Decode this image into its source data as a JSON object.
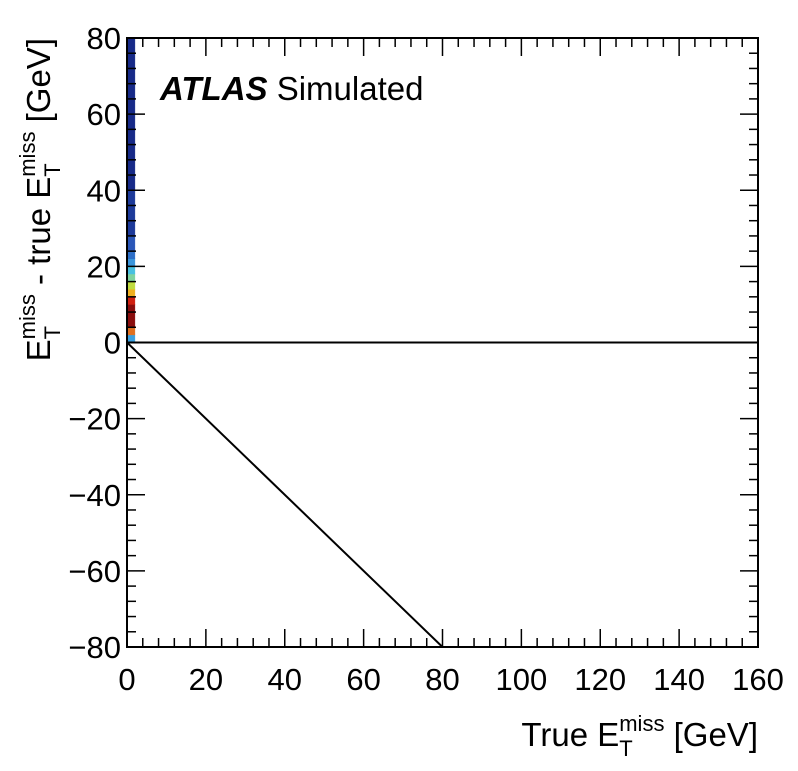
{
  "chart_data": {
    "type": "heatmap2d",
    "annotation": [
      {
        "text": "ATLAS",
        "style": "bold-italic"
      },
      {
        "text": " Simulated",
        "style": "normal"
      }
    ],
    "xlabel": [
      {
        "text": "True E"
      },
      {
        "text": "T",
        "script": "sub"
      },
      {
        "text": "miss",
        "script": "sup"
      },
      {
        "text": " [GeV]"
      }
    ],
    "ylabel": [
      {
        "text": "E"
      },
      {
        "text": "T",
        "script": "sub"
      },
      {
        "text": "miss",
        "script": "sup"
      },
      {
        "text": " - true E"
      },
      {
        "text": "T",
        "script": "sub"
      },
      {
        "text": "miss",
        "script": "sup"
      },
      {
        "text": " [GeV]"
      }
    ],
    "xlim": [
      0,
      160
    ],
    "ylim": [
      -80,
      80
    ],
    "xticks": [
      0,
      20,
      40,
      60,
      80,
      100,
      120,
      140,
      160
    ],
    "yticks": [
      {
        "value": -80,
        "label": "−80"
      },
      {
        "value": -60,
        "label": "−60"
      },
      {
        "value": -40,
        "label": "−40"
      },
      {
        "value": -20,
        "label": "−20"
      },
      0,
      20,
      40,
      60,
      80
    ],
    "minor_divisions": 5,
    "cells": [
      {
        "x": [
          0,
          2
        ],
        "y": [
          0,
          2
        ],
        "color": "#3aa0e0"
      },
      {
        "x": [
          0,
          2
        ],
        "y": [
          2,
          4
        ],
        "color": "#e07020"
      },
      {
        "x": [
          0,
          2
        ],
        "y": [
          4,
          10
        ],
        "color": "#8a0d0d"
      },
      {
        "x": [
          0,
          2
        ],
        "y": [
          10,
          12
        ],
        "color": "#d02010"
      },
      {
        "x": [
          0,
          2
        ],
        "y": [
          12,
          14
        ],
        "color": "#f0b020"
      },
      {
        "x": [
          0,
          2
        ],
        "y": [
          14,
          16
        ],
        "color": "#c0dc40"
      },
      {
        "x": [
          0,
          2
        ],
        "y": [
          16,
          18
        ],
        "color": "#7fd3a0"
      },
      {
        "x": [
          0,
          2
        ],
        "y": [
          18,
          20
        ],
        "color": "#48c0e0"
      },
      {
        "x": [
          0,
          2
        ],
        "y": [
          20,
          22
        ],
        "color": "#3a96dc"
      },
      {
        "x": [
          0,
          2
        ],
        "y": [
          22,
          24
        ],
        "color": "#2d6fc8"
      },
      {
        "x": [
          0,
          2
        ],
        "y": [
          24,
          28
        ],
        "color": "#2a56b8"
      },
      {
        "x": [
          0,
          2
        ],
        "y": [
          28,
          40
        ],
        "color": "#1d3a9a"
      },
      {
        "x": [
          0,
          2
        ],
        "y": [
          40,
          80
        ],
        "color": "#172a88"
      }
    ],
    "lines": [
      {
        "x": [
          0,
          160
        ],
        "y": [
          0,
          0
        ],
        "color": "#000000"
      },
      {
        "x": [
          0,
          80
        ],
        "y": [
          0,
          -80
        ],
        "color": "#000000"
      }
    ]
  }
}
